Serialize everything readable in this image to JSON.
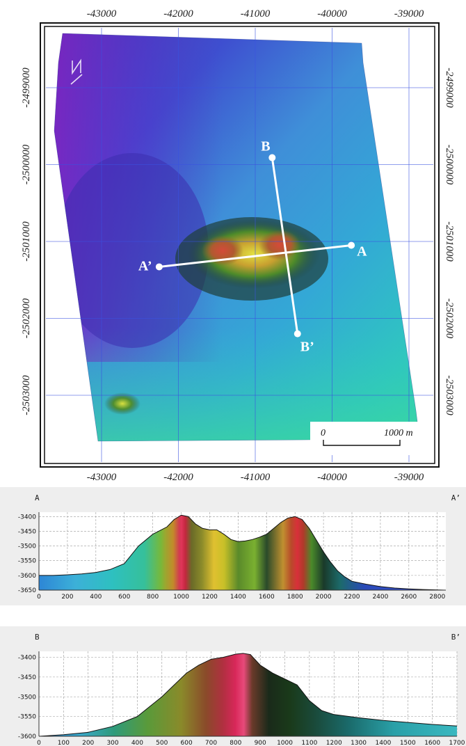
{
  "map": {
    "x_ticks": [
      "-43000",
      "-42000",
      "-41000",
      "-40000",
      "-39000"
    ],
    "y_ticks": [
      "-2499000",
      "-2500000",
      "-2501000",
      "-2502000",
      "-2503000"
    ],
    "x_tick_values": [
      -43000,
      -42000,
      -41000,
      -40000,
      -39000
    ],
    "y_tick_values": [
      -2499000,
      -2500000,
      -2501000,
      -2502000,
      -2503000
    ],
    "scale_bar": {
      "start_label": "0",
      "end_label": "1000 m"
    },
    "north_arrow": "north-arrow-icon",
    "profile_lines": [
      {
        "start": "A",
        "end": "A’",
        "from": [
          -39750,
          -2501050
        ],
        "to": [
          -42250,
          -2501330
        ]
      },
      {
        "start": "B",
        "end": "B’",
        "from": [
          -40780,
          -2499910
        ],
        "to": [
          -40450,
          -2502200
        ]
      }
    ]
  },
  "chart_data": [
    {
      "type": "area",
      "start_label": "A",
      "end_label": "A’",
      "x_ticks": [
        0,
        200,
        400,
        600,
        800,
        1000,
        1200,
        1400,
        1600,
        1800,
        2000,
        2200,
        2400,
        2600,
        2800
      ],
      "y_ticks": [
        -3400,
        -3450,
        -3500,
        -3550,
        -3600,
        -3650
      ],
      "xlim": [
        0,
        2860
      ],
      "ylim": [
        -3650,
        -3385
      ],
      "grid": true,
      "x": [
        0,
        100,
        200,
        300,
        400,
        500,
        600,
        700,
        800,
        900,
        950,
        1000,
        1050,
        1100,
        1150,
        1200,
        1250,
        1300,
        1350,
        1400,
        1450,
        1500,
        1550,
        1600,
        1650,
        1700,
        1750,
        1800,
        1850,
        1900,
        1950,
        2000,
        2050,
        2100,
        2150,
        2200,
        2300,
        2400,
        2500,
        2600,
        2700,
        2860
      ],
      "y": [
        -3600,
        -3600,
        -3598,
        -3595,
        -3590,
        -3580,
        -3560,
        -3500,
        -3460,
        -3435,
        -3410,
        -3395,
        -3400,
        -3425,
        -3440,
        -3445,
        -3445,
        -3460,
        -3478,
        -3485,
        -3483,
        -3478,
        -3470,
        -3460,
        -3440,
        -3420,
        -3405,
        -3400,
        -3410,
        -3440,
        -3480,
        -3520,
        -3555,
        -3585,
        -3605,
        -3620,
        -3630,
        -3638,
        -3643,
        -3646,
        -3648,
        -3650
      ]
    },
    {
      "type": "area",
      "start_label": "B",
      "end_label": "B’",
      "x_ticks": [
        0,
        100,
        200,
        300,
        400,
        500,
        600,
        700,
        800,
        900,
        1000,
        1100,
        1200,
        1300,
        1400,
        1500,
        1600,
        1700
      ],
      "y_ticks": [
        -3400,
        -3450,
        -3500,
        -3550,
        -3600
      ],
      "xlim": [
        0,
        1700
      ],
      "ylim": [
        -3600,
        -3385
      ],
      "grid": true,
      "x": [
        0,
        100,
        200,
        300,
        400,
        500,
        550,
        600,
        650,
        700,
        750,
        800,
        830,
        860,
        900,
        950,
        1000,
        1050,
        1100,
        1150,
        1200,
        1300,
        1400,
        1500,
        1600,
        1700
      ],
      "y": [
        -3600,
        -3596,
        -3590,
        -3575,
        -3550,
        -3500,
        -3470,
        -3440,
        -3420,
        -3405,
        -3400,
        -3392,
        -3390,
        -3393,
        -3420,
        -3440,
        -3455,
        -3470,
        -3510,
        -3535,
        -3545,
        -3553,
        -3560,
        -3565,
        -3570,
        -3574
      ]
    }
  ]
}
